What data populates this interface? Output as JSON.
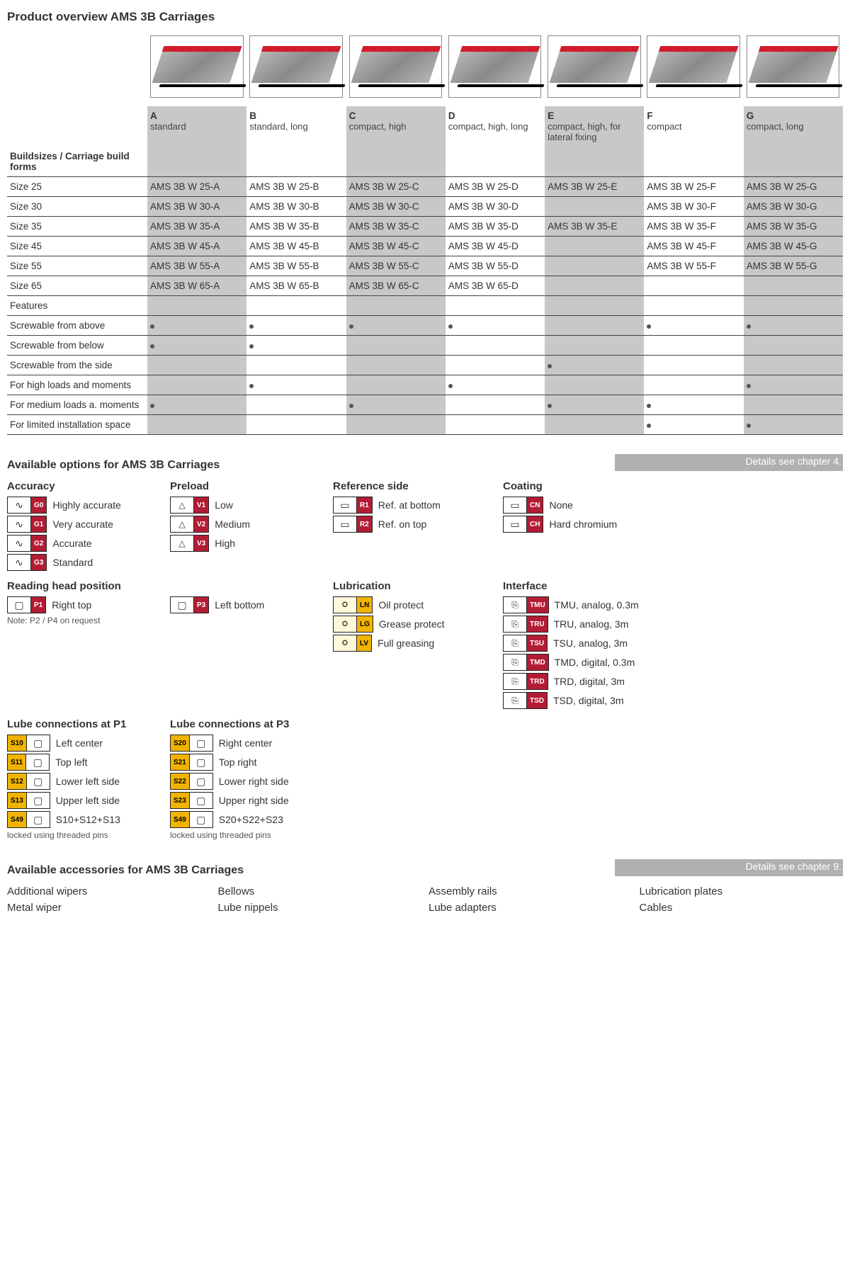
{
  "page_title": "Product overview AMS 3B Carriages",
  "variants": [
    {
      "letter": "A",
      "desc": "standard",
      "shaded": true
    },
    {
      "letter": "B",
      "desc": "standard, long",
      "shaded": false
    },
    {
      "letter": "C",
      "desc": "compact, high",
      "shaded": true
    },
    {
      "letter": "D",
      "desc": "compact, high, long",
      "shaded": false
    },
    {
      "letter": "E",
      "desc": "compact, high, for lateral fixing",
      "shaded": true
    },
    {
      "letter": "F",
      "desc": "compact",
      "shaded": false
    },
    {
      "letter": "G",
      "desc": "compact, long",
      "shaded": true
    }
  ],
  "buildsizes_header": "Buildsizes / Carriage build forms",
  "build_rows": [
    {
      "label": "Size 25",
      "codes": [
        "AMS 3B W 25-A",
        "AMS 3B W 25-B",
        "AMS 3B W 25-C",
        "AMS 3B W 25-D",
        "AMS 3B W 25-E",
        "AMS 3B W 25-F",
        "AMS 3B W 25-G"
      ]
    },
    {
      "label": "Size 30",
      "codes": [
        "AMS 3B W 30-A",
        "AMS 3B W 30-B",
        "AMS 3B W 30-C",
        "AMS 3B W 30-D",
        "",
        "AMS 3B W 30-F",
        "AMS 3B W 30-G"
      ]
    },
    {
      "label": "Size 35",
      "codes": [
        "AMS 3B W 35-A",
        "AMS 3B W 35-B",
        "AMS 3B W 35-C",
        "AMS 3B W 35-D",
        "AMS 3B W 35-E",
        "AMS 3B W 35-F",
        "AMS 3B W 35-G"
      ]
    },
    {
      "label": "Size 45",
      "codes": [
        "AMS 3B W 45-A",
        "AMS 3B W 45-B",
        "AMS 3B W 45-C",
        "AMS 3B W 45-D",
        "",
        "AMS 3B W 45-F",
        "AMS 3B W 45-G"
      ]
    },
    {
      "label": "Size 55",
      "codes": [
        "AMS 3B W 55-A",
        "AMS 3B W 55-B",
        "AMS 3B W 55-C",
        "AMS 3B W 55-D",
        "",
        "AMS 3B W 55-F",
        "AMS 3B W 55-G"
      ]
    },
    {
      "label": "Size 65",
      "codes": [
        "AMS 3B W 65-A",
        "AMS 3B W 65-B",
        "AMS 3B W 65-C",
        "AMS 3B W 65-D",
        "",
        "",
        ""
      ]
    }
  ],
  "features_header": "Features",
  "feature_rows": [
    {
      "label": "Screwable from above",
      "dots": [
        true,
        true,
        true,
        true,
        false,
        true,
        true
      ]
    },
    {
      "label": "Screwable from below",
      "dots": [
        true,
        true,
        false,
        false,
        false,
        false,
        false
      ]
    },
    {
      "label": "Screwable from the side",
      "dots": [
        false,
        false,
        false,
        false,
        true,
        false,
        false
      ]
    },
    {
      "label": "For high loads and moments",
      "dots": [
        false,
        true,
        false,
        true,
        false,
        false,
        true
      ]
    },
    {
      "label": "For medium loads a. moments",
      "dots": [
        true,
        false,
        true,
        false,
        true,
        true,
        false
      ]
    },
    {
      "label": "For limited installation space",
      "dots": [
        false,
        false,
        false,
        false,
        false,
        true,
        true
      ]
    }
  ],
  "options_title": "Available options for AMS 3B Carriages",
  "chapter_options": "Details see chapter 4.",
  "accuracy": {
    "title": "Accuracy",
    "items": [
      {
        "tag": "G0",
        "label": "Highly accurate"
      },
      {
        "tag": "G1",
        "label": "Very accurate"
      },
      {
        "tag": "G2",
        "label": "Accurate"
      },
      {
        "tag": "G3",
        "label": "Standard"
      }
    ]
  },
  "preload": {
    "title": "Preload",
    "items": [
      {
        "tag": "V1",
        "label": "Low"
      },
      {
        "tag": "V2",
        "label": "Medium"
      },
      {
        "tag": "V3",
        "label": "High"
      }
    ]
  },
  "refside": {
    "title": "Reference side",
    "items": [
      {
        "tag": "R1",
        "label": "Ref. at bottom"
      },
      {
        "tag": "R2",
        "label": "Ref. on top"
      }
    ]
  },
  "coating": {
    "title": "Coating",
    "items": [
      {
        "tag": "CN",
        "label": "None"
      },
      {
        "tag": "CH",
        "label": "Hard chromium"
      }
    ]
  },
  "readinghead": {
    "title": "Reading head position",
    "left": {
      "tag": "P1",
      "label": "Right top"
    },
    "right": {
      "tag": "P3",
      "label": "Left bottom"
    },
    "note": "Note: P2 / P4 on request"
  },
  "lubrication": {
    "title": "Lubrication",
    "items": [
      {
        "tag": "LN",
        "label": "Oil protect"
      },
      {
        "tag": "LG",
        "label": "Grease protect"
      },
      {
        "tag": "LV",
        "label": "Full greasing"
      }
    ]
  },
  "interface": {
    "title": "Interface",
    "items": [
      {
        "tag": "TMU",
        "label": "TMU, analog, 0.3m"
      },
      {
        "tag": "TRU",
        "label": "TRU, analog, 3m"
      },
      {
        "tag": "TSU",
        "label": "TSU, analog, 3m"
      },
      {
        "tag": "TMD",
        "label": "TMD, digital, 0.3m"
      },
      {
        "tag": "TRD",
        "label": "TRD, digital, 3m"
      },
      {
        "tag": "TSD",
        "label": "TSD, digital, 3m"
      }
    ]
  },
  "lube_p1": {
    "title": "Lube connections at P1",
    "items": [
      {
        "tag": "S10",
        "label": "Left center"
      },
      {
        "tag": "S11",
        "label": "Top left"
      },
      {
        "tag": "S12",
        "label": "Lower left side"
      },
      {
        "tag": "S13",
        "label": "Upper left side"
      },
      {
        "tag": "S49",
        "label": "S10+S12+S13"
      }
    ],
    "note": "locked using threaded pins"
  },
  "lube_p3": {
    "title": "Lube connections at P3",
    "items": [
      {
        "tag": "S20",
        "label": "Right center"
      },
      {
        "tag": "S21",
        "label": "Top right"
      },
      {
        "tag": "S22",
        "label": "Lower right side"
      },
      {
        "tag": "S23",
        "label": "Upper right side"
      },
      {
        "tag": "S49",
        "label": "S20+S22+S23"
      }
    ],
    "note": "locked using threaded pins"
  },
  "accessories_title": "Available accessories for AMS 3B Carriages",
  "chapter_accessories": "Details see chapter  9.",
  "accessories": [
    "Additional wipers",
    "Bellows",
    "Assembly rails",
    "Lubrication plates",
    "Metal wiper",
    "Lube nippels",
    "Lube adapters",
    "Cables"
  ],
  "colors": {
    "red": "#b31c35",
    "yellow": "#f0b400",
    "shaded": "#c8c8c8",
    "strip": "#b0b0b0"
  }
}
